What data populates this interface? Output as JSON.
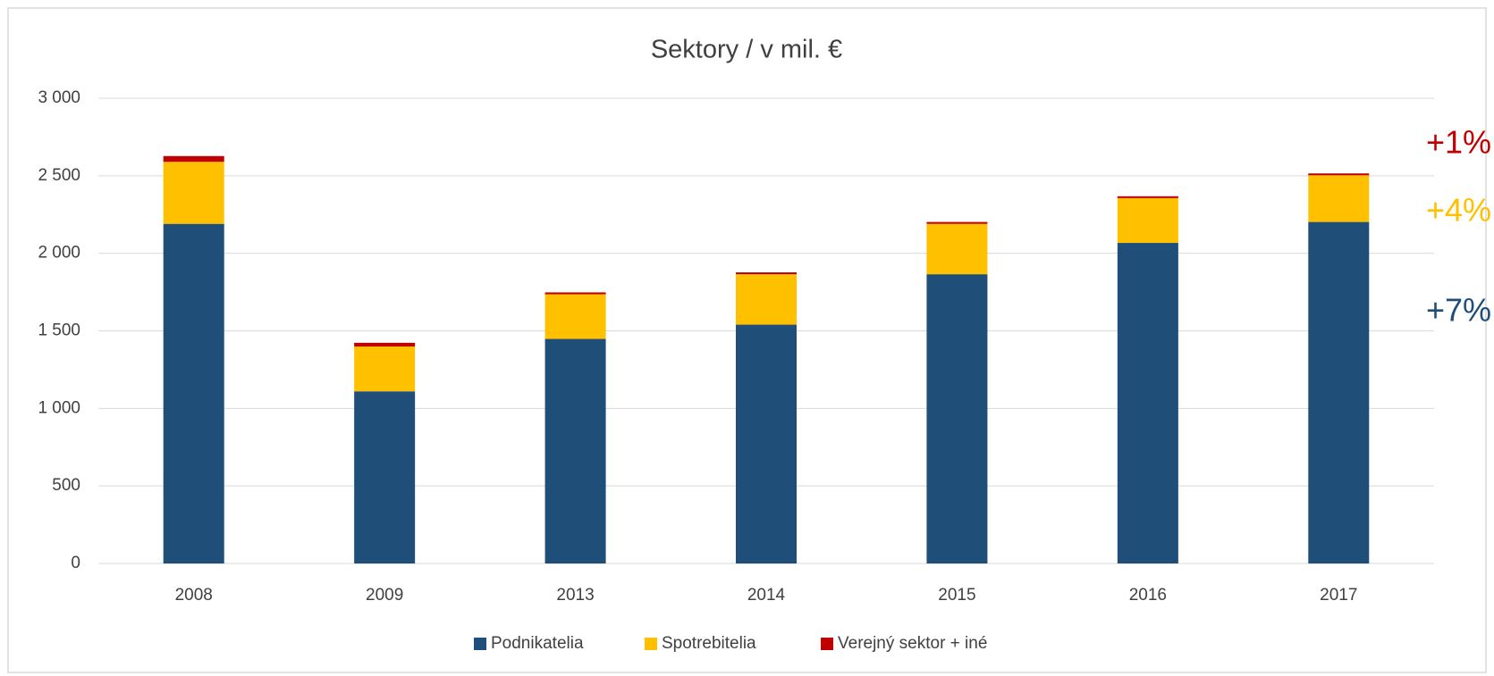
{
  "chart_data": {
    "type": "stacked_bar",
    "title": "Sektory / v mil. €",
    "categories": [
      "2008",
      "2009",
      "2013",
      "2014",
      "2015",
      "2016",
      "2017"
    ],
    "series": [
      {
        "name": "Podnikatelia",
        "color": "#1f4e79",
        "values": [
          2190,
          1110,
          1448,
          1540,
          1865,
          2067,
          2202
        ]
      },
      {
        "name": "Spotrebitelia",
        "color": "#ffc000",
        "values": [
          400,
          289,
          288,
          325,
          325,
          289,
          301
        ]
      },
      {
        "name": "Verejný sektor + iné",
        "color": "#c00000",
        "values": [
          37,
          24,
          12,
          12,
          12,
          12,
          12
        ]
      }
    ],
    "ylim": [
      0,
      3000
    ],
    "yticks": [
      0,
      500,
      {
        "value": 1000,
        "label": "1 000"
      },
      {
        "value": 1500,
        "label": "1 500"
      },
      {
        "value": 2000,
        "label": "2 000"
      },
      {
        "value": 2500,
        "label": "2 500"
      },
      {
        "value": 3000,
        "label": "3 000"
      }
    ],
    "grid": true,
    "legend": "bottom",
    "annotations": [
      {
        "text": "+1%",
        "color": "#c00000"
      },
      {
        "text": "+4%",
        "color": "#ffc000"
      },
      {
        "text": "+7%",
        "color": "#1f4e79"
      }
    ]
  }
}
